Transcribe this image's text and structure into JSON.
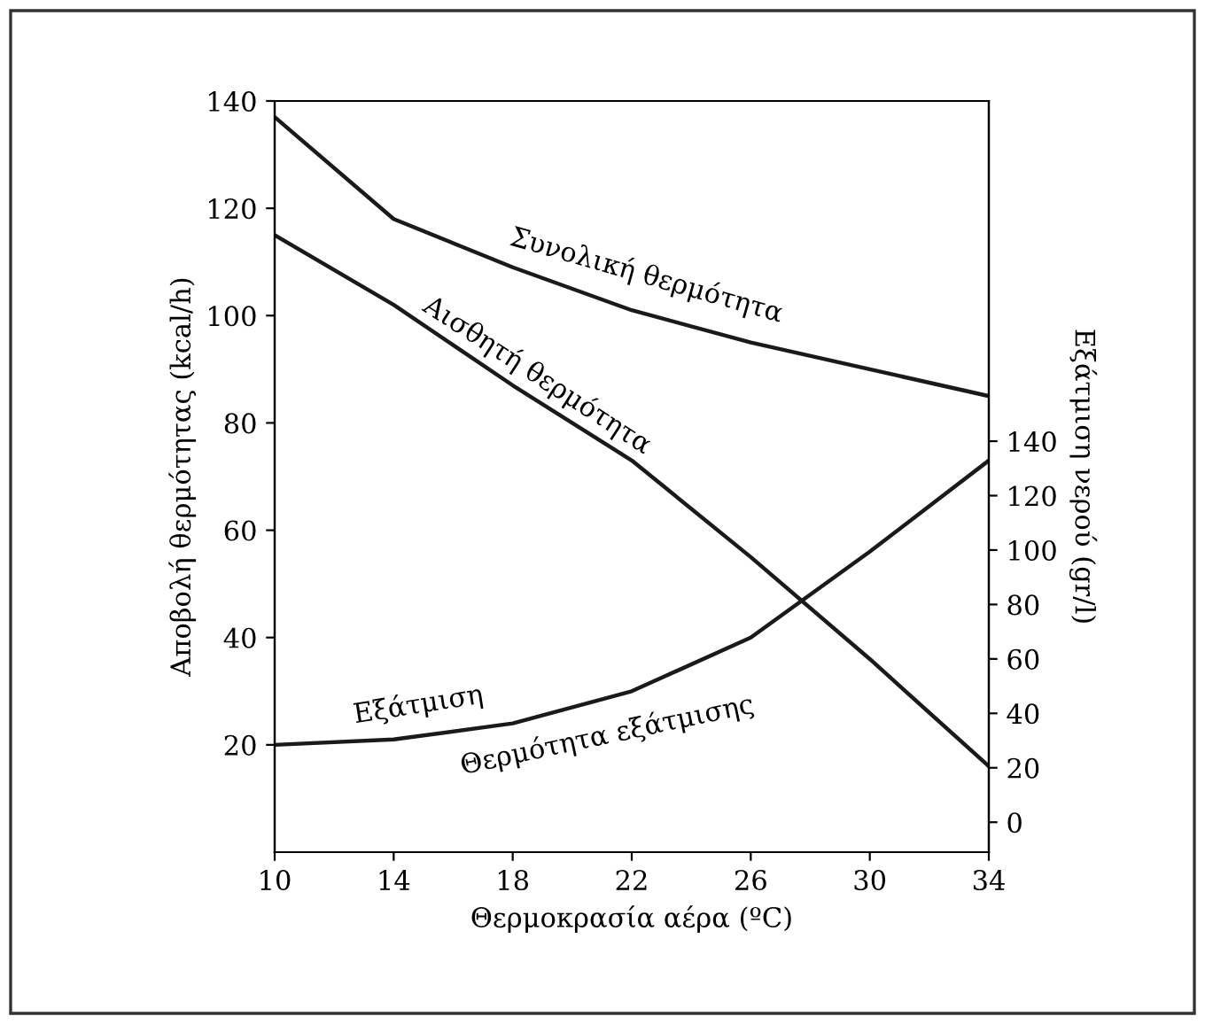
{
  "chart_data": {
    "type": "line",
    "xlabel": "Θερμοκρασία αέρα (ºC)",
    "ylabel": "Αποβολή θερμότητας (kcal/h)",
    "y2label": "Εξάτμιση νερού (gr/l)",
    "x": [
      10,
      14,
      18,
      22,
      26,
      30,
      34
    ],
    "series": [
      {
        "color": "#1a1a1a",
        "values": [
          137,
          118,
          109,
          101,
          95,
          90,
          85
        ]
      },
      {
        "color": "#1a1a1a",
        "values": [
          115,
          102,
          87,
          73,
          55,
          36,
          16
        ]
      },
      {
        "color": "#1a1a1a",
        "values": [
          20,
          21,
          24,
          30,
          40,
          56,
          73
        ]
      }
    ],
    "xlim": [
      10,
      34
    ],
    "xticks": [
      10,
      14,
      18,
      22,
      26,
      30,
      34
    ],
    "ylim": [
      0,
      140
    ],
    "yticks": [
      20,
      40,
      60,
      80,
      100,
      120,
      140
    ],
    "y2lim": [
      -11,
      265
    ],
    "y2ticks": [
      0,
      20,
      40,
      60,
      80,
      100,
      120,
      140
    ],
    "annotations": [
      {
        "text": "Συνολική θερμότητα",
        "x": 22,
        "y": 101
      },
      {
        "text": "Αισθητή θερμότητα",
        "x": 18,
        "y": 87
      },
      {
        "text": "Εξάτμιση",
        "x": 14,
        "y": 21
      },
      {
        "text": "Θερμότητα εξάτμισης",
        "x": 22,
        "y": 30
      }
    ],
    "grid": false,
    "legend": false,
    "marker": "none",
    "line_style": "solid"
  }
}
